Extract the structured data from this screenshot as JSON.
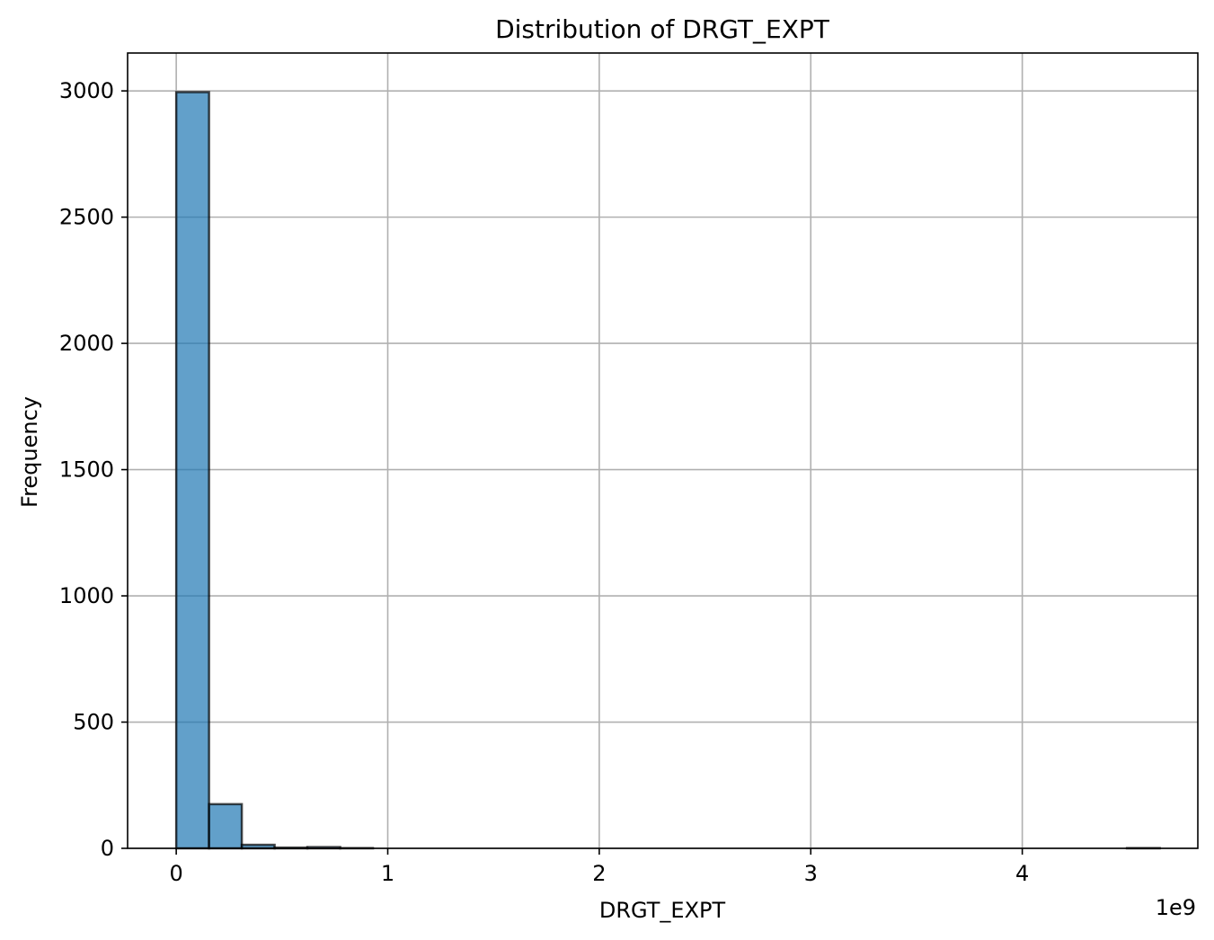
{
  "chart_data": {
    "type": "bar",
    "title": "Distribution of DRGT_EXPT",
    "xlabel": "DRGT_EXPT",
    "ylabel": "Frequency",
    "x_offset_label": "1e9",
    "x_scale": 1000000000,
    "xlim": [
      -0.23,
      4.83
    ],
    "ylim": [
      0,
      3150
    ],
    "x_ticks": [
      0,
      1,
      2,
      3,
      4
    ],
    "x_tick_labels": [
      "0",
      "1",
      "2",
      "3",
      "4"
    ],
    "y_ticks": [
      0,
      500,
      1000,
      1500,
      2000,
      2500,
      3000
    ],
    "y_tick_labels": [
      "0",
      "500",
      "1000",
      "1500",
      "2000",
      "2500",
      "3000"
    ],
    "grid": true,
    "bar_color": "#1f77b4",
    "bar_edge_color": "#000000",
    "bin_width": 0.155,
    "bins": [
      {
        "start": 0.0,
        "count": 2995
      },
      {
        "start": 0.155,
        "count": 175
      },
      {
        "start": 0.31,
        "count": 14
      },
      {
        "start": 0.465,
        "count": 3
      },
      {
        "start": 0.62,
        "count": 5
      },
      {
        "start": 0.775,
        "count": 1
      },
      {
        "start": 0.93,
        "count": 0
      },
      {
        "start": 1.085,
        "count": 0
      },
      {
        "start": 1.24,
        "count": 0
      },
      {
        "start": 1.395,
        "count": 0
      },
      {
        "start": 1.55,
        "count": 0
      },
      {
        "start": 1.705,
        "count": 0
      },
      {
        "start": 1.86,
        "count": 0
      },
      {
        "start": 2.015,
        "count": 0
      },
      {
        "start": 2.17,
        "count": 0
      },
      {
        "start": 2.325,
        "count": 0
      },
      {
        "start": 2.48,
        "count": 0
      },
      {
        "start": 2.635,
        "count": 0
      },
      {
        "start": 2.79,
        "count": 0
      },
      {
        "start": 2.945,
        "count": 0
      },
      {
        "start": 3.1,
        "count": 0
      },
      {
        "start": 3.255,
        "count": 0
      },
      {
        "start": 3.41,
        "count": 0
      },
      {
        "start": 3.565,
        "count": 0
      },
      {
        "start": 3.72,
        "count": 0
      },
      {
        "start": 3.875,
        "count": 0
      },
      {
        "start": 4.03,
        "count": 0
      },
      {
        "start": 4.185,
        "count": 0
      },
      {
        "start": 4.34,
        "count": 0
      },
      {
        "start": 4.495,
        "count": 1
      }
    ]
  }
}
